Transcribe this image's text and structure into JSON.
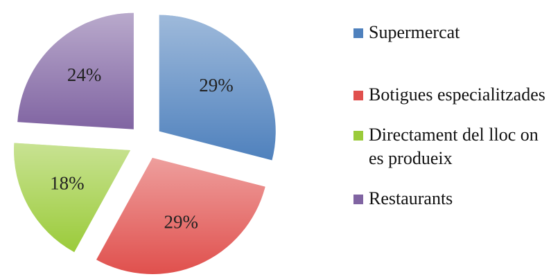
{
  "chart_data": {
    "type": "pie",
    "categories": [
      "Supermercat",
      "Botigues especialitzades",
      "Directament del lloc on es produeix",
      "Restaurants"
    ],
    "values": [
      29,
      29,
      18,
      24
    ],
    "value_labels": [
      "29%",
      "29%",
      "18%",
      "24%"
    ],
    "colors": [
      "#4f81bd",
      "#e0504d",
      "#9bcb3a",
      "#8064a2"
    ],
    "legend": "right"
  }
}
